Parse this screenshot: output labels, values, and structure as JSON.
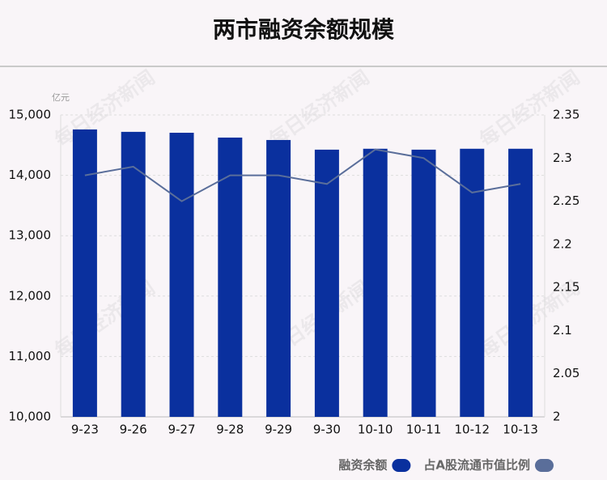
{
  "chart_data": {
    "type": "bar",
    "title": "两市融资余额规模",
    "y_unit": "亿元",
    "watermark": "每日经济新闻",
    "categories": [
      "9-23",
      "9-26",
      "9-27",
      "9-28",
      "9-29",
      "9-30",
      "10-10",
      "10-11",
      "10-12",
      "10-13"
    ],
    "series": [
      {
        "name": "融资余额",
        "type": "bar",
        "color": "#0a309e",
        "values": [
          14760,
          14720,
          14705,
          14625,
          14585,
          14425,
          14440,
          14425,
          14440,
          14440
        ]
      },
      {
        "name": "占A股流通市值比例",
        "type": "line",
        "axis": "y2",
        "color": "#5a6e9a",
        "values": [
          2.28,
          2.29,
          2.25,
          2.28,
          2.28,
          2.27,
          2.31,
          2.3,
          2.26,
          2.27
        ]
      }
    ],
    "ylim": [
      10000,
      15000
    ],
    "yticks": [
      {
        "value": 10000,
        "label": "10,000"
      },
      {
        "value": 11000,
        "label": "11,000"
      },
      {
        "value": 12000,
        "label": "12,000"
      },
      {
        "value": 13000,
        "label": "13,000"
      },
      {
        "value": 14000,
        "label": "14,000"
      },
      {
        "value": 15000,
        "label": "15,000"
      }
    ],
    "y2lim": [
      2,
      2.35
    ],
    "y2ticks": [
      2,
      2.05,
      2.1,
      2.15,
      2.2,
      2.25,
      2.3,
      2.35
    ],
    "grid": true,
    "legend": "bottom-right"
  }
}
